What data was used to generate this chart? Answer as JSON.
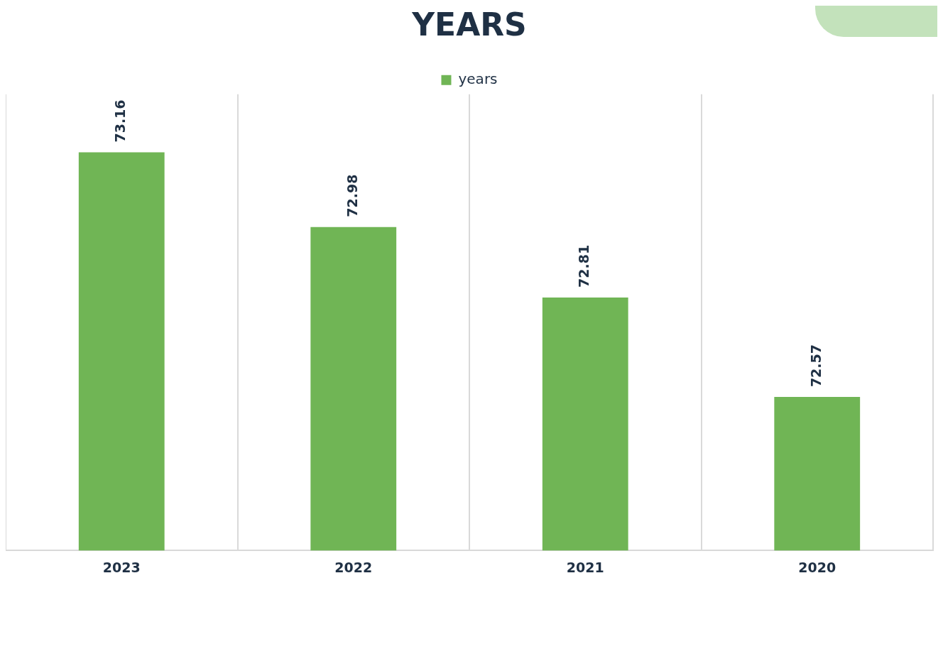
{
  "chart_data": {
    "type": "bar",
    "title": "YEARS",
    "categories": [
      "2023",
      "2022",
      "2021",
      "2020"
    ],
    "series": [
      {
        "name": "years",
        "color": "#70b555",
        "values": [
          73.16,
          72.98,
          72.81,
          72.57
        ]
      }
    ],
    "ylim": [
      72.2,
      73.3
    ],
    "tick_labels": "x",
    "grid": "x",
    "legend": "top",
    "data_labels": true
  }
}
